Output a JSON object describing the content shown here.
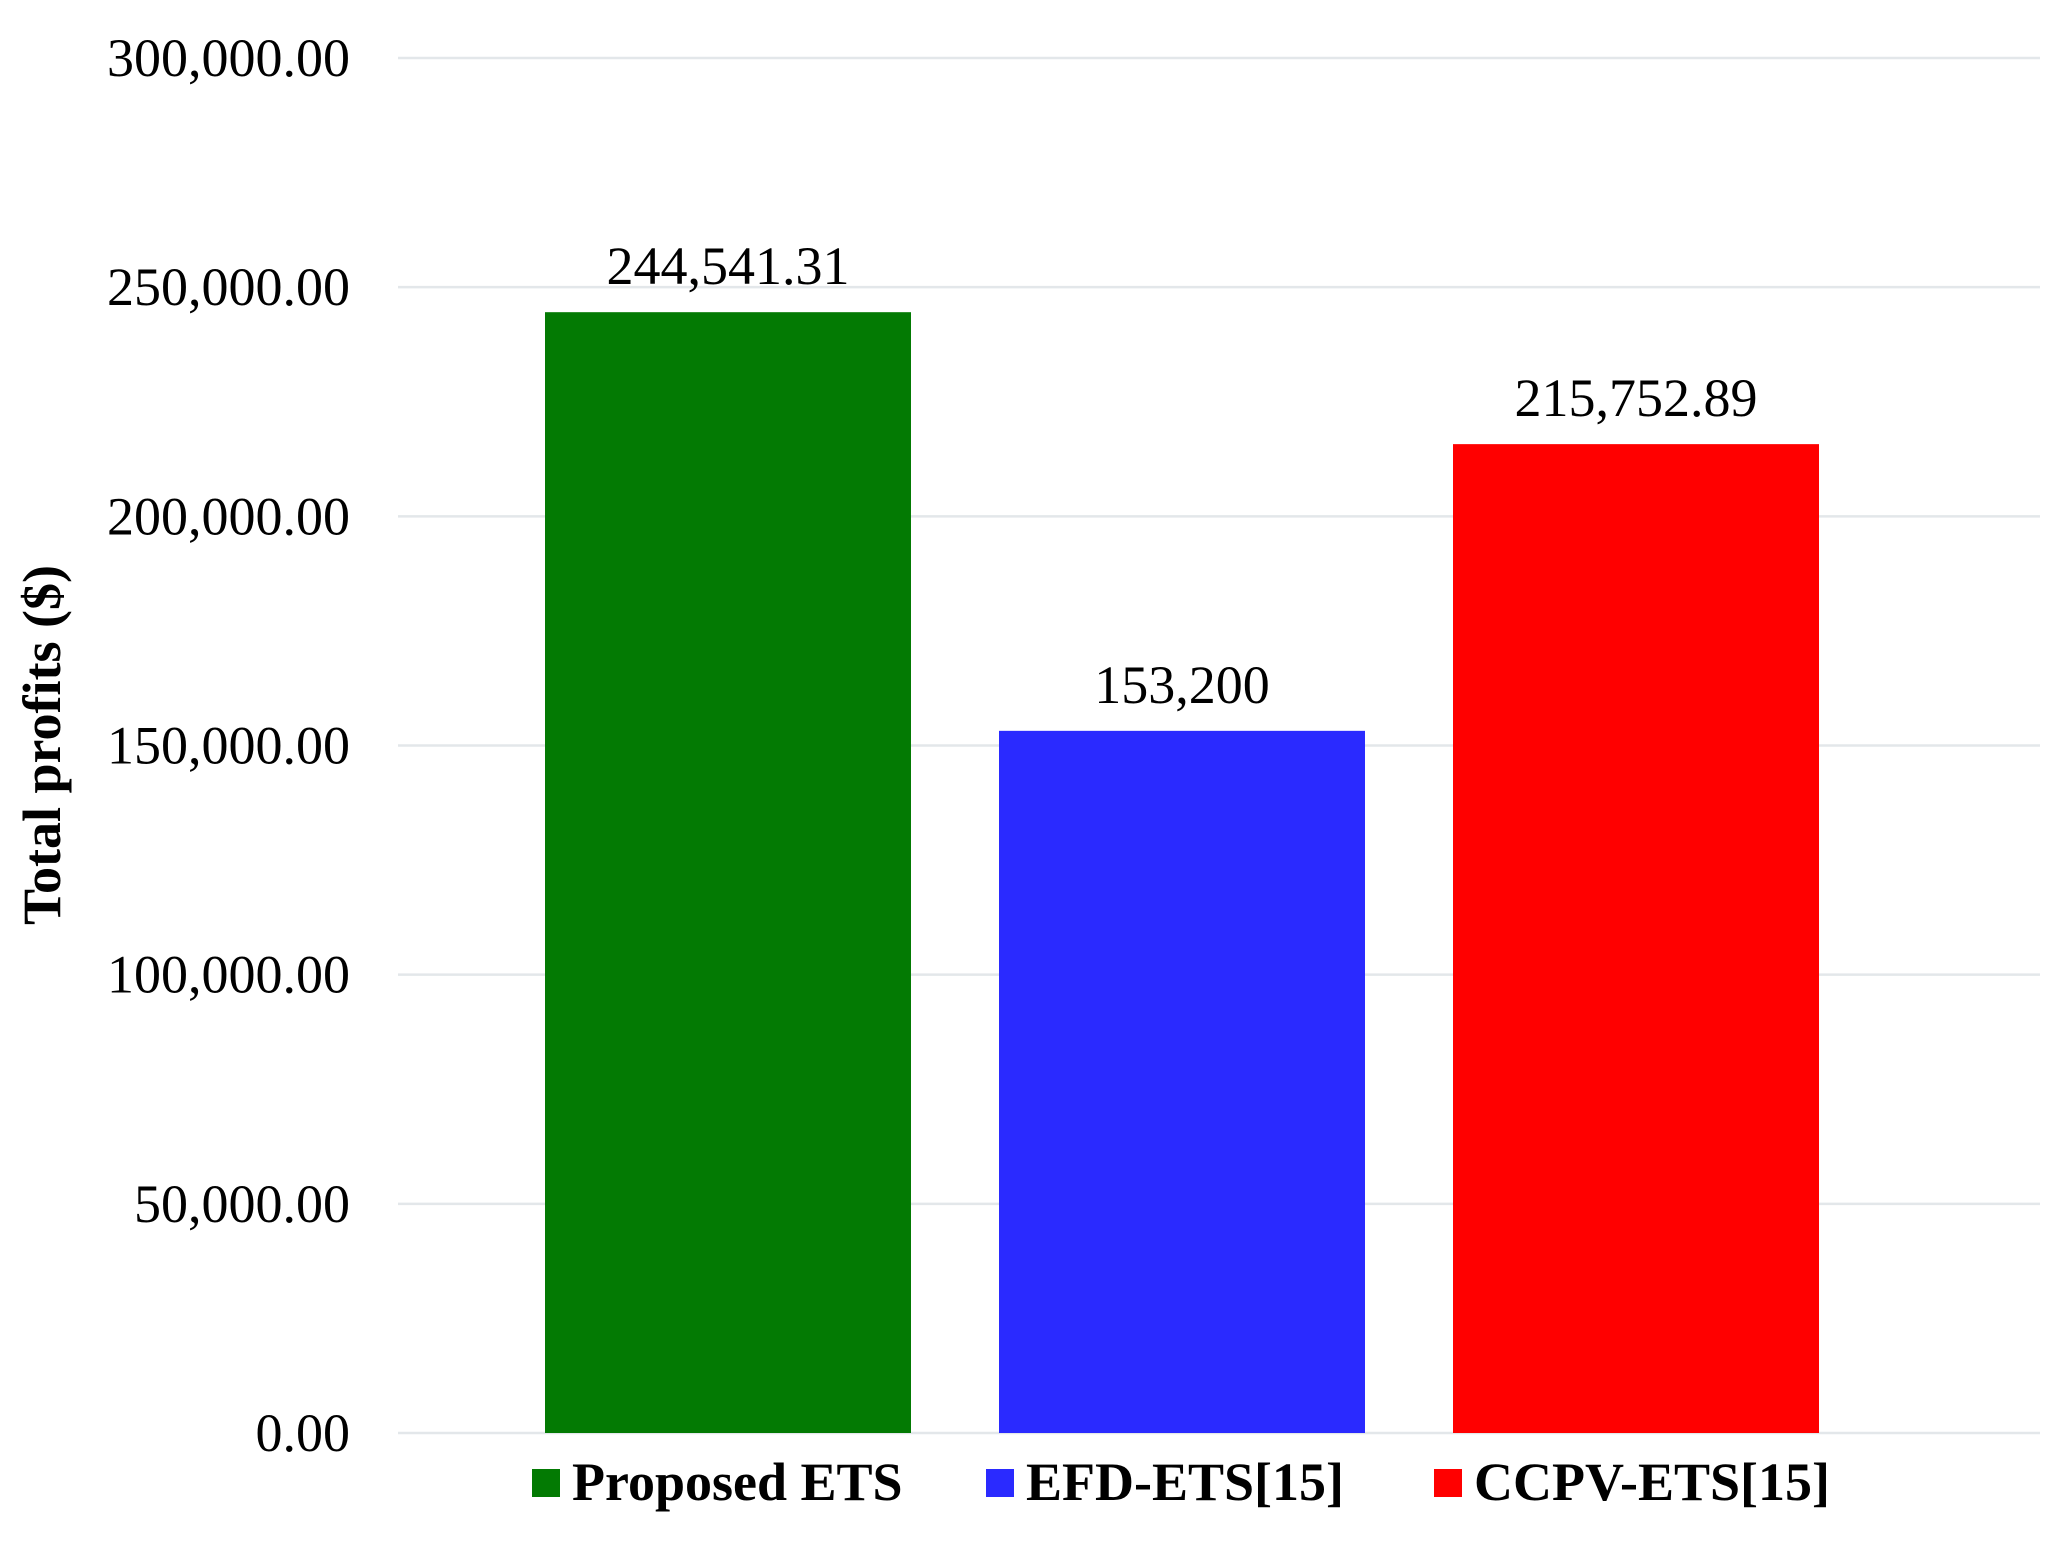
{
  "chart_data": {
    "type": "bar",
    "categories": [
      "Proposed ETS",
      "EFD-ETS[15]",
      "CCPV-ETS[15]"
    ],
    "values": [
      244541.31,
      153200,
      215752.89
    ],
    "data_labels": [
      "244,541.31",
      "153,200",
      "215,752.89"
    ],
    "colors": [
      "#037a03",
      "#2a2aff",
      "#ff0000"
    ],
    "ylabel": "Total profits ($)",
    "xlabel": "",
    "ylim": [
      0,
      300000
    ],
    "yticks": [
      0,
      50000,
      100000,
      150000,
      200000,
      250000,
      300000
    ],
    "ytick_labels": [
      "0.00",
      "50,000.00",
      "100,000.00",
      "150,000.00",
      "200,000.00",
      "250,000.00",
      "300,000.00"
    ],
    "grid": true,
    "grid_color": "#e3e7ea",
    "legend": {
      "placement": "bottom",
      "entries": [
        "Proposed ETS",
        "EFD-ETS[15]",
        "CCPV-ETS[15]"
      ]
    }
  }
}
